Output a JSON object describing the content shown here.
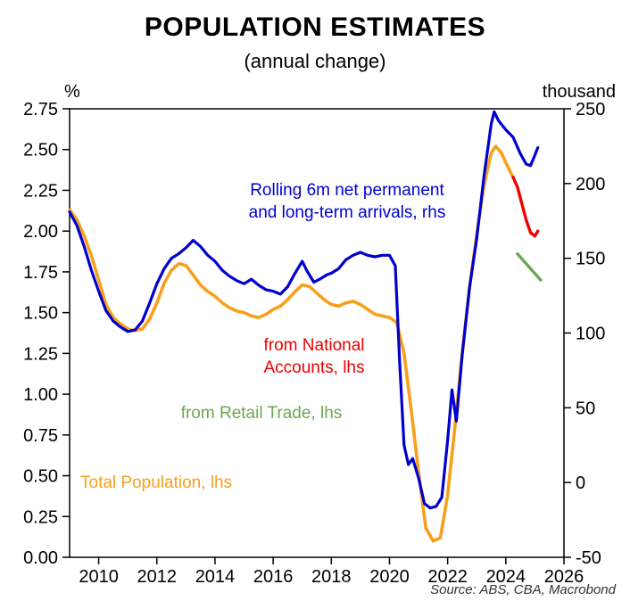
{
  "header": {
    "title": "POPULATION ESTIMATES",
    "subtitle": "(annual change)"
  },
  "source_note": "Source: ABS, CBA, Macrobond",
  "chart_data": {
    "type": "line",
    "title": "POPULATION ESTIMATES",
    "subtitle": "(annual change)",
    "legend_position": "inline-annotations",
    "grid": false,
    "left_axis": {
      "unit": "%",
      "min": 0.0,
      "max": 2.75,
      "ticks": [
        0.0,
        0.25,
        0.5,
        0.75,
        1.0,
        1.25,
        1.5,
        1.75,
        2.0,
        2.25,
        2.5,
        2.75
      ],
      "tick_labels": [
        "0.00",
        "0.25",
        "0.50",
        "0.75",
        "1.00",
        "1.25",
        "1.50",
        "1.75",
        "2.00",
        "2.25",
        "2.50",
        "2.75"
      ]
    },
    "right_axis": {
      "unit": "thousand",
      "min": -50,
      "max": 250,
      "ticks": [
        -50,
        0,
        50,
        100,
        150,
        200,
        250
      ],
      "tick_labels": [
        "-50",
        "0",
        "50",
        "100",
        "150",
        "200",
        "250"
      ]
    },
    "x_axis": {
      "min": 2009,
      "max": 2026,
      "ticks": [
        2010,
        2012,
        2014,
        2016,
        2018,
        2020,
        2022,
        2024,
        2026
      ],
      "tick_labels": [
        "2010",
        "2012",
        "2014",
        "2016",
        "2018",
        "2020",
        "2022",
        "2024",
        "2026"
      ]
    },
    "series": [
      {
        "name": "Total Population",
        "annotation": "Total Population, lhs",
        "axis": "left",
        "color": "#f8a01c",
        "width": 3.6,
        "x": [
          2009.0,
          2009.25,
          2009.5,
          2009.75,
          2010.0,
          2010.25,
          2010.5,
          2010.75,
          2011.0,
          2011.25,
          2011.5,
          2011.75,
          2012.0,
          2012.25,
          2012.5,
          2012.75,
          2013.0,
          2013.25,
          2013.5,
          2013.75,
          2014.0,
          2014.25,
          2014.5,
          2014.75,
          2015.0,
          2015.25,
          2015.5,
          2015.75,
          2016.0,
          2016.25,
          2016.5,
          2016.75,
          2017.0,
          2017.25,
          2017.5,
          2017.75,
          2018.0,
          2018.25,
          2018.5,
          2018.75,
          2019.0,
          2019.25,
          2019.5,
          2019.75,
          2020.0,
          2020.25,
          2020.5,
          2020.75,
          2021.0,
          2021.25,
          2021.5,
          2021.75,
          2022.0,
          2022.25,
          2022.5,
          2022.75,
          2023.0,
          2023.25,
          2023.5,
          2023.65,
          2023.85,
          2024.0,
          2024.25
        ],
        "y": [
          2.13,
          2.07,
          1.97,
          1.85,
          1.7,
          1.55,
          1.47,
          1.43,
          1.4,
          1.39,
          1.4,
          1.46,
          1.56,
          1.68,
          1.76,
          1.8,
          1.79,
          1.73,
          1.67,
          1.63,
          1.6,
          1.56,
          1.53,
          1.51,
          1.5,
          1.48,
          1.47,
          1.49,
          1.52,
          1.54,
          1.58,
          1.63,
          1.67,
          1.66,
          1.62,
          1.58,
          1.55,
          1.54,
          1.56,
          1.57,
          1.55,
          1.52,
          1.49,
          1.48,
          1.47,
          1.44,
          1.25,
          0.9,
          0.52,
          0.18,
          0.1,
          0.12,
          0.38,
          0.8,
          1.25,
          1.65,
          1.98,
          2.28,
          2.48,
          2.52,
          2.48,
          2.42,
          2.33
        ]
      },
      {
        "name": "from Retail Trade",
        "annotation": "from Retail Trade, lhs",
        "axis": "left",
        "color": "#6aa84f",
        "width": 3.4,
        "x": [
          2024.4,
          2024.6,
          2024.8,
          2025.0,
          2025.2
        ],
        "y": [
          1.86,
          1.82,
          1.78,
          1.74,
          1.7
        ]
      },
      {
        "name": "from National Accounts",
        "annotation": "from National\nAccounts, lhs",
        "axis": "left",
        "color": "#ee0000",
        "width": 3.4,
        "x": [
          2024.25,
          2024.4,
          2024.55,
          2024.7,
          2024.85,
          2025.0,
          2025.1
        ],
        "y": [
          2.33,
          2.27,
          2.17,
          2.07,
          1.99,
          1.97,
          2.0
        ]
      },
      {
        "name": "Rolling 6m net permanent and long-term arrivals",
        "annotation": "Rolling 6m net permanent\nand long-term arrivals, rhs",
        "axis": "right",
        "color": "#0000cd",
        "width": 3.2,
        "x": [
          2009.0,
          2009.25,
          2009.5,
          2009.75,
          2010.0,
          2010.25,
          2010.5,
          2010.75,
          2011.0,
          2011.25,
          2011.5,
          2011.75,
          2012.0,
          2012.25,
          2012.5,
          2012.75,
          2013.0,
          2013.25,
          2013.5,
          2013.75,
          2014.0,
          2014.25,
          2014.5,
          2014.75,
          2015.0,
          2015.25,
          2015.5,
          2015.75,
          2016.0,
          2016.25,
          2016.5,
          2016.75,
          2017.0,
          2017.15,
          2017.4,
          2017.6,
          2017.85,
          2018.0,
          2018.25,
          2018.5,
          2018.75,
          2019.0,
          2019.25,
          2019.5,
          2019.75,
          2020.0,
          2020.2,
          2020.35,
          2020.5,
          2020.65,
          2020.8,
          2021.0,
          2021.2,
          2021.4,
          2021.6,
          2021.8,
          2022.0,
          2022.15,
          2022.3,
          2022.5,
          2022.75,
          2023.0,
          2023.25,
          2023.5,
          2023.6,
          2023.75,
          2024.0,
          2024.25,
          2024.5,
          2024.7,
          2024.85,
          2025.0,
          2025.1
        ],
        "y": [
          181,
          172,
          158,
          142,
          128,
          115,
          108,
          104,
          101,
          102,
          108,
          120,
          133,
          143,
          150,
          153,
          157,
          162,
          158,
          152,
          148,
          142,
          138,
          135,
          133,
          136,
          132,
          129,
          128,
          126,
          131,
          140,
          148,
          142,
          134,
          136,
          139,
          140,
          143,
          149,
          152,
          154,
          152,
          151,
          152,
          152,
          145,
          80,
          25,
          12,
          16,
          3,
          -14,
          -17,
          -16,
          -10,
          28,
          62,
          41,
          85,
          130,
          163,
          205,
          240,
          248,
          242,
          236,
          231,
          220,
          213,
          212,
          219,
          224
        ]
      }
    ]
  }
}
